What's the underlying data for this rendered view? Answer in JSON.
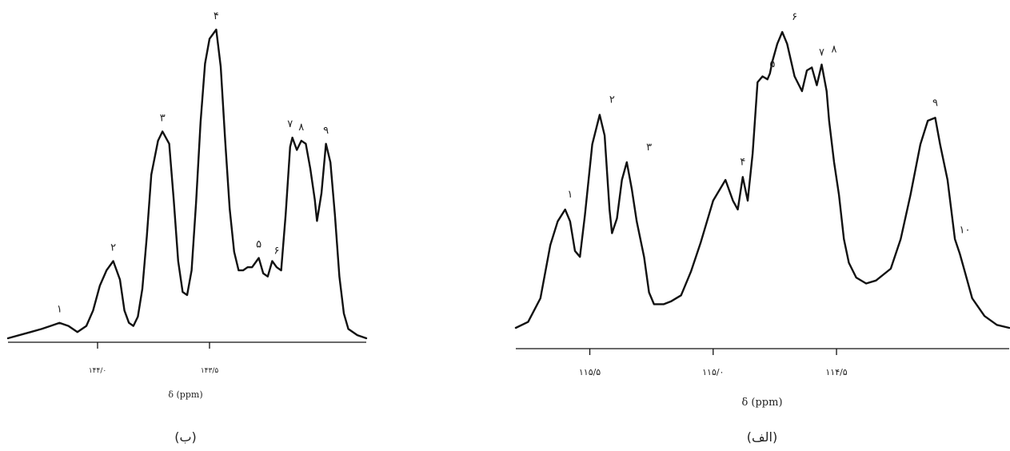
{
  "chart_data": [
    {
      "type": "line",
      "caption": "(ب)",
      "xlabel": "δ (ppm)",
      "reversed_x": true,
      "xlim": [
        144.4,
        142.8
      ],
      "x_ticks": [
        {
          "value": 144.0,
          "label": "۱۴۴/۰"
        },
        {
          "value": 143.5,
          "label": "۱۴۳/۵"
        }
      ],
      "y_relative_range": [
        0,
        100
      ],
      "peaks": [
        {
          "label": "۱",
          "x": 144.17,
          "y": 5
        },
        {
          "label": "۲",
          "x": 143.93,
          "y": 25
        },
        {
          "label": "۳",
          "x": 143.71,
          "y": 67
        },
        {
          "label": "۴",
          "x": 143.47,
          "y": 100
        },
        {
          "label": "۵",
          "x": 143.28,
          "y": 26
        },
        {
          "label": "۶",
          "x": 143.2,
          "y": 24
        },
        {
          "label": "۷",
          "x": 143.14,
          "y": 65
        },
        {
          "label": "۸",
          "x": 143.09,
          "y": 64
        },
        {
          "label": "۹",
          "x": 142.98,
          "y": 63
        }
      ],
      "series": [
        {
          "x": [
            144.4,
            144.3,
            144.25,
            144.21,
            144.17,
            144.13,
            144.09,
            144.05,
            144.02,
            143.99,
            143.96,
            143.93,
            143.9,
            143.88,
            143.86,
            143.84,
            143.82,
            143.8,
            143.78,
            143.76,
            143.73,
            143.71,
            143.68,
            143.66,
            143.64,
            143.62,
            143.6,
            143.58,
            143.56,
            143.54,
            143.52,
            143.5,
            143.47,
            143.45,
            143.43,
            143.41,
            143.39,
            143.37,
            143.35,
            143.33,
            143.31,
            143.29,
            143.28,
            143.26,
            143.24,
            143.22,
            143.2,
            143.18,
            143.16,
            143.14,
            143.13,
            143.11,
            143.09,
            143.07,
            143.05,
            143.03,
            143.02,
            143.0,
            142.98,
            142.96,
            142.94,
            142.92,
            142.9,
            142.88,
            142.84,
            142.8
          ],
          "y": [
            0,
            2,
            3,
            4,
            5,
            4,
            2,
            4,
            9,
            17,
            22,
            25,
            19,
            9,
            5,
            4,
            7,
            16,
            33,
            53,
            64,
            67,
            63,
            45,
            25,
            15,
            14,
            22,
            44,
            70,
            89,
            97,
            100,
            88,
            64,
            42,
            28,
            22,
            22,
            23,
            23,
            25,
            26,
            21,
            20,
            25,
            23,
            22,
            40,
            62,
            65,
            61,
            64,
            63,
            55,
            45,
            38,
            47,
            63,
            57,
            40,
            20,
            8,
            3,
            1,
            0
          ]
        }
      ]
    },
    {
      "type": "line",
      "caption": "(الف)",
      "xlabel": "δ (ppm)",
      "reversed_x": true,
      "xlim": [
        115.8,
        113.8
      ],
      "x_ticks": [
        {
          "value": 115.5,
          "label": "۱۱۵/۵"
        },
        {
          "value": 115.0,
          "label": "۱۱۵/۰"
        },
        {
          "value": 114.5,
          "label": "۱۱۴/۵"
        }
      ],
      "y_relative_range": [
        0,
        100
      ],
      "peaks": [
        {
          "label": "۱",
          "x": 115.58,
          "y": 40
        },
        {
          "label": "۲",
          "x": 115.41,
          "y": 72
        },
        {
          "label": "۳",
          "x": 115.26,
          "y": 56
        },
        {
          "label": "۴",
          "x": 114.88,
          "y": 51
        },
        {
          "label": "۵",
          "x": 114.76,
          "y": 84
        },
        {
          "label": "۶",
          "x": 114.67,
          "y": 100
        },
        {
          "label": "۷",
          "x": 114.56,
          "y": 88
        },
        {
          "label": "۸",
          "x": 114.51,
          "y": 89
        },
        {
          "label": "۹",
          "x": 114.1,
          "y": 71
        },
        {
          "label": "۱۰",
          "x": 113.98,
          "y": 28
        }
      ],
      "series": [
        {
          "x": [
            115.8,
            115.75,
            115.7,
            115.66,
            115.63,
            115.6,
            115.58,
            115.56,
            115.54,
            115.52,
            115.49,
            115.46,
            115.44,
            115.42,
            115.41,
            115.39,
            115.37,
            115.35,
            115.33,
            115.31,
            115.28,
            115.26,
            115.24,
            115.22,
            115.2,
            115.17,
            115.13,
            115.09,
            115.05,
            115.0,
            114.95,
            114.92,
            114.9,
            114.88,
            114.86,
            114.84,
            114.82,
            114.8,
            114.78,
            114.77,
            114.76,
            114.74,
            114.72,
            114.7,
            114.67,
            114.64,
            114.62,
            114.6,
            114.58,
            114.56,
            114.54,
            114.53,
            114.51,
            114.49,
            114.47,
            114.45,
            114.42,
            114.38,
            114.34,
            114.28,
            114.24,
            114.2,
            114.16,
            114.13,
            114.1,
            114.08,
            114.05,
            114.02,
            114.0,
            113.98,
            113.95,
            113.9,
            113.85,
            113.8
          ],
          "y": [
            0,
            2,
            10,
            28,
            36,
            40,
            36,
            26,
            24,
            38,
            62,
            72,
            65,
            40,
            32,
            37,
            50,
            56,
            47,
            36,
            24,
            12,
            8,
            8,
            8,
            9,
            11,
            19,
            29,
            43,
            50,
            43,
            40,
            51,
            43,
            59,
            83,
            85,
            84,
            86,
            90,
            96,
            100,
            96,
            85,
            80,
            87,
            88,
            82,
            89,
            80,
            70,
            56,
            45,
            30,
            22,
            17,
            15,
            16,
            20,
            30,
            45,
            62,
            70,
            71,
            62,
            50,
            30,
            25,
            19,
            10,
            4,
            1,
            0
          ]
        }
      ]
    }
  ]
}
